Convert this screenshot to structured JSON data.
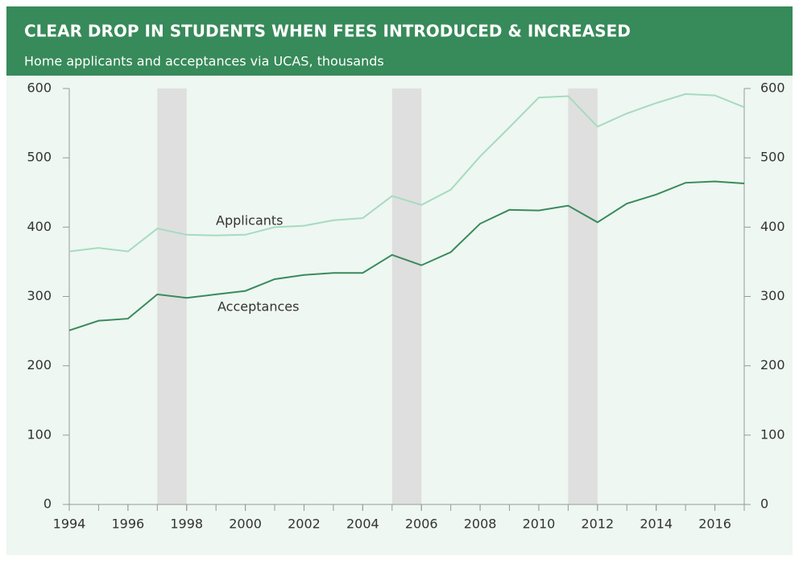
{
  "chart_data": {
    "type": "line",
    "title": "CLEAR DROP IN STUDENTS WHEN FEES INTRODUCED & INCREASED",
    "subtitle": "Home applicants and acceptances via UCAS, thousands",
    "x": [
      1994,
      1995,
      1996,
      1997,
      1998,
      1999,
      2000,
      2001,
      2002,
      2003,
      2004,
      2005,
      2006,
      2007,
      2008,
      2009,
      2010,
      2011,
      2012,
      2013,
      2014,
      2015,
      2016,
      2017
    ],
    "series": [
      {
        "name": "Applicants",
        "color": "#a6dbc0",
        "values": [
          365,
          370,
          365,
          398,
          389,
          388,
          389,
          400,
          402,
          410,
          413,
          445,
          432,
          454,
          502,
          544,
          587,
          589,
          545,
          564,
          579,
          592,
          590,
          573
        ]
      },
      {
        "name": "Acceptances",
        "color": "#3a8a5c",
        "values": [
          251,
          265,
          268,
          303,
          298,
          303,
          308,
          325,
          331,
          334,
          334,
          360,
          345,
          364,
          405,
          425,
          424,
          431,
          407,
          434,
          447,
          464,
          466,
          463
        ]
      }
    ],
    "shaded": [
      [
        1997,
        1998
      ],
      [
        2005,
        2006
      ],
      [
        2011,
        2012
      ]
    ],
    "xlim": [
      1994,
      2017
    ],
    "xticks": [
      1994,
      1996,
      1998,
      2000,
      2002,
      2004,
      2006,
      2008,
      2010,
      2012,
      2014,
      2016
    ],
    "ylim": [
      0,
      600
    ],
    "yticks": [
      0,
      100,
      200,
      300,
      400,
      500,
      600
    ],
    "y2lim": [
      0,
      600
    ],
    "y2ticks": [
      0,
      100,
      200,
      300,
      400,
      500,
      600
    ]
  }
}
